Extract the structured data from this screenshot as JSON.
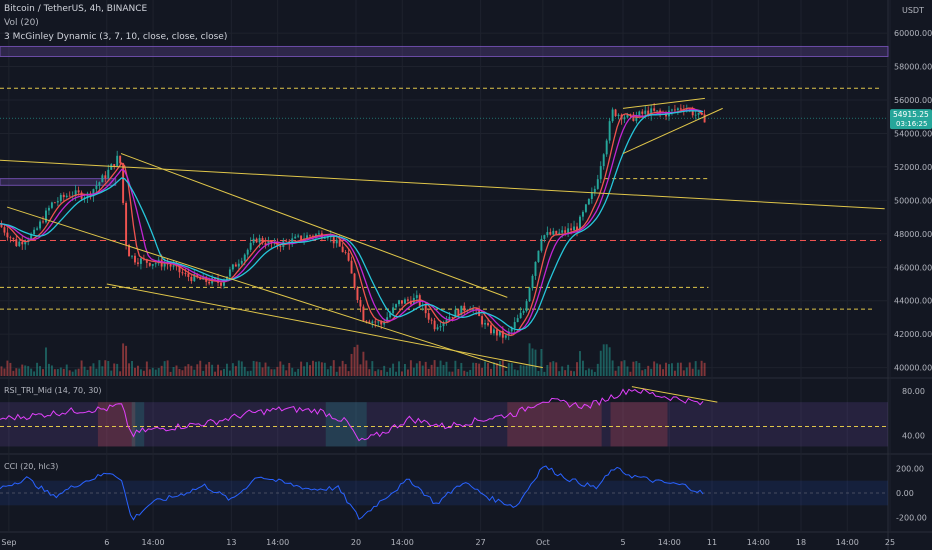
{
  "header": {
    "symbol": "Bitcoin / TetherUS, 4h, BINANCE",
    "volume_label": "Vol (20)",
    "indicator_label": "3 McGinley Dynamic (3, 7, 10, close, close, close)"
  },
  "currency": "USDT",
  "last_price": "54915.25",
  "countdown": "03:16:25",
  "colors": {
    "background": "#131722",
    "up": "#26a69a",
    "down": "#ef5350",
    "trendline": "#e0c64a",
    "support": "#e0c64a",
    "resistance_red": "#ef5350",
    "mcginley_fast": "#ef5350",
    "mcginley_mid": "#c026d3",
    "mcginley_slow": "#26c6da",
    "rsi_line": "#e040fb",
    "cci_line": "#2962ff",
    "band_purple": "#7e57c2"
  },
  "chart_data": [
    {
      "type": "candlestick",
      "title": "Bitcoin / TetherUS, 4h, BINANCE",
      "y_range": [
        39500,
        61500
      ],
      "y_ticks": [
        40000,
        42000,
        44000,
        46000,
        48000,
        50000,
        52000,
        54000,
        56000,
        58000,
        60000
      ],
      "y_tick_labels": [
        "40000.00",
        "42000.00",
        "44000.00",
        "46000.00",
        "48000.00",
        "50000.00",
        "52000.00",
        "54000.00",
        "56000.00",
        "58000.00",
        "60000.00"
      ],
      "x_tick_labels": [
        "Sep",
        "6",
        "14:00",
        "13",
        "14:00",
        "20",
        "14:00",
        "27",
        "Oct",
        "5",
        "14:00",
        "11",
        "14:00",
        "18",
        "14:00",
        "25"
      ],
      "x_tick_days": [
        0.5,
        6,
        8.6,
        13,
        15.6,
        20,
        22.6,
        27,
        30.5,
        35,
        37.6,
        40,
        42.6,
        45,
        47.6,
        50
      ],
      "price_path": [
        [
          0,
          48600
        ],
        [
          1,
          47400
        ],
        [
          2,
          48000
        ],
        [
          3,
          49800
        ],
        [
          4,
          50400
        ],
        [
          5,
          50300
        ],
        [
          6,
          51500
        ],
        [
          6.8,
          52700
        ],
        [
          7.2,
          47000
        ],
        [
          7.6,
          46500
        ],
        [
          8.5,
          46300
        ],
        [
          9.5,
          46200
        ],
        [
          10.5,
          45500
        ],
        [
          11.5,
          45200
        ],
        [
          12.5,
          45100
        ],
        [
          13.5,
          46400
        ],
        [
          14.5,
          47700
        ],
        [
          15.5,
          47300
        ],
        [
          16.5,
          47600
        ],
        [
          17.5,
          47900
        ],
        [
          18.5,
          48000
        ],
        [
          19.5,
          46800
        ],
        [
          20.5,
          43000
        ],
        [
          21.5,
          42600
        ],
        [
          22.5,
          43900
        ],
        [
          23.5,
          44100
        ],
        [
          24.5,
          42500
        ],
        [
          25.5,
          43200
        ],
        [
          26.5,
          43700
        ],
        [
          27.5,
          42300
        ],
        [
          28.5,
          41800
        ],
        [
          29.5,
          43400
        ],
        [
          30.5,
          47900
        ],
        [
          31.5,
          48000
        ],
        [
          32.5,
          48400
        ],
        [
          33.5,
          50700
        ],
        [
          34.5,
          55300
        ],
        [
          35.5,
          54900
        ],
        [
          36.5,
          55300
        ],
        [
          37.5,
          55200
        ],
        [
          38.5,
          55600
        ],
        [
          39.5,
          54900
        ]
      ],
      "mcginley": [
        {
          "name": "fast",
          "lag": 0.6
        },
        {
          "name": "mid",
          "lag": 1.2
        },
        {
          "name": "slow",
          "lag": 2.0
        }
      ],
      "horizontal_levels": [
        {
          "price": 56700,
          "color": "support",
          "style": "dashed",
          "day_to": 49.5
        },
        {
          "price": 51300,
          "color": "support",
          "style": "dashed",
          "day_from": 34,
          "day_to": 39.8
        },
        {
          "price": 47600,
          "color": "resistance_red",
          "style": "dashed",
          "day_to": 49.5
        },
        {
          "price": 44800,
          "color": "support",
          "style": "dashed",
          "day_to": 39.8
        },
        {
          "price": 43500,
          "color": "support",
          "style": "dashed",
          "day_to": 49.0
        }
      ],
      "zones": [
        {
          "from": 58600,
          "to": 59200,
          "color": "band_purple"
        },
        {
          "from": 50900,
          "to": 51300,
          "color": "band_purple",
          "day_to": 6.5
        }
      ],
      "trendlines": [
        [
          [
            0,
            52400
          ],
          [
            49.7,
            49500
          ]
        ],
        [
          [
            6.8,
            52800
          ],
          [
            28.5,
            44200
          ]
        ],
        [
          [
            0.4,
            49600
          ],
          [
            28.5,
            40000
          ]
        ],
        [
          [
            6.0,
            45000
          ],
          [
            30.5,
            40000
          ]
        ],
        [
          [
            35,
            55500
          ],
          [
            39.6,
            56100
          ]
        ],
        [
          [
            35,
            52800
          ],
          [
            40.6,
            55500
          ]
        ]
      ]
    },
    {
      "type": "bar",
      "title": "Vol (20)",
      "description_series": "volume"
    },
    {
      "type": "line",
      "title": "RSI_TRI_Mid (14, 70, 30)",
      "y_range": [
        25,
        90
      ],
      "y_ticks": [
        40,
        80
      ],
      "y_tick_labels": [
        "40.00",
        "80.00"
      ],
      "levels": [
        70,
        48
      ],
      "values": [
        [
          0,
          55
        ],
        [
          2,
          58
        ],
        [
          4,
          62
        ],
        [
          6,
          64
        ],
        [
          6.8,
          68
        ],
        [
          7.4,
          40
        ],
        [
          8,
          44
        ],
        [
          10,
          48
        ],
        [
          12,
          52
        ],
        [
          14,
          60
        ],
        [
          16,
          64
        ],
        [
          18,
          62
        ],
        [
          19.5,
          52
        ],
        [
          20.2,
          34
        ],
        [
          21.5,
          42
        ],
        [
          23,
          55
        ],
        [
          25,
          48
        ],
        [
          27,
          54
        ],
        [
          29,
          60
        ],
        [
          30.5,
          72
        ],
        [
          33,
          66
        ],
        [
          34.5,
          76
        ],
        [
          35.5,
          82
        ],
        [
          37,
          76
        ],
        [
          38.5,
          72
        ],
        [
          39.5,
          68
        ]
      ],
      "divergence_line": [
        [
          35.5,
          84
        ],
        [
          40.3,
          70
        ]
      ]
    },
    {
      "type": "line",
      "title": "CCI (20, hlc3)",
      "y_range": [
        -300,
        300
      ],
      "y_ticks": [
        200,
        0,
        -200
      ],
      "y_tick_labels": [
        "200.00",
        "0.00",
        "-200.00"
      ],
      "band": [
        100,
        -100
      ],
      "values": [
        [
          0,
          40
        ],
        [
          1.5,
          120
        ],
        [
          3,
          -30
        ],
        [
          4.5,
          80
        ],
        [
          6.2,
          170
        ],
        [
          6.8,
          120
        ],
        [
          7.4,
          -220
        ],
        [
          8.5,
          -80
        ],
        [
          10,
          -20
        ],
        [
          11.5,
          60
        ],
        [
          13,
          -60
        ],
        [
          14.5,
          140
        ],
        [
          16,
          80
        ],
        [
          17.5,
          30
        ],
        [
          19,
          40
        ],
        [
          20.2,
          -210
        ],
        [
          21.5,
          -50
        ],
        [
          23,
          110
        ],
        [
          24.5,
          -90
        ],
        [
          26,
          90
        ],
        [
          27.5,
          -40
        ],
        [
          29,
          -110
        ],
        [
          30.5,
          220
        ],
        [
          32,
          110
        ],
        [
          33.5,
          40
        ],
        [
          34.5,
          200
        ],
        [
          35.5,
          140
        ],
        [
          37,
          90
        ],
        [
          38.5,
          60
        ],
        [
          39.6,
          -10
        ]
      ]
    }
  ]
}
